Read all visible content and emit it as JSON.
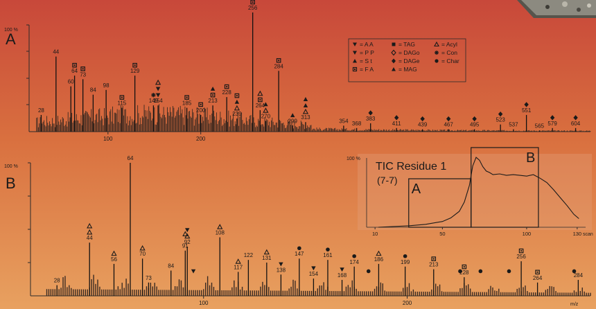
{
  "chart_data": [
    {
      "type": "bar",
      "panel_label": "A",
      "y_axis_label": "100 %",
      "x_tick_labels": [
        "100",
        "200"
      ],
      "x_ticks": [
        100,
        200
      ],
      "x_range": [
        15,
        620
      ],
      "peaks": [
        {
          "mz": 28,
          "rel": 14,
          "label": "28",
          "marker": ""
        },
        {
          "mz": 44,
          "rel": 63,
          "label": "44",
          "marker": ""
        },
        {
          "mz": 60,
          "rel": 38,
          "label": "60",
          "marker": ""
        },
        {
          "mz": 64,
          "rel": 47,
          "label": "64",
          "marker": "square"
        },
        {
          "mz": 73,
          "rel": 44,
          "label": "73",
          "marker": "square"
        },
        {
          "mz": 84,
          "rel": 31,
          "label": "84",
          "marker": ""
        },
        {
          "mz": 98,
          "rel": 35,
          "label": "98",
          "marker": ""
        },
        {
          "mz": 115,
          "rel": 20,
          "label": "115",
          "marker": "square"
        },
        {
          "mz": 129,
          "rel": 47,
          "label": "129",
          "marker": "square"
        },
        {
          "mz": 149,
          "rel": 22,
          "label": "149",
          "marker": "star"
        },
        {
          "mz": 154,
          "rel": 22,
          "label": "154",
          "marker": "tri-down"
        },
        {
          "mz": 185,
          "rel": 20,
          "label": "185",
          "marker": "square"
        },
        {
          "mz": 200,
          "rel": 14,
          "label": "200",
          "marker": "square"
        },
        {
          "mz": 213,
          "rel": 22,
          "label": "213",
          "marker": "square"
        },
        {
          "mz": 228,
          "rel": 29,
          "label": "228",
          "marker": "square"
        },
        {
          "mz": 239,
          "rel": 11,
          "label": "239",
          "marker": "tri-open"
        },
        {
          "mz": 256,
          "rel": 100,
          "label": "256",
          "marker": "square"
        },
        {
          "mz": 264,
          "rel": 18,
          "label": "264",
          "marker": "square"
        },
        {
          "mz": 270,
          "rel": 9,
          "label": "270",
          "marker": "tri-open"
        },
        {
          "mz": 284,
          "rel": 51,
          "label": "284",
          "marker": "square"
        },
        {
          "mz": 299,
          "rel": 5,
          "label": "299",
          "marker": "tri-up"
        },
        {
          "mz": 313,
          "rel": 8,
          "label": "313",
          "marker": "tri-open"
        },
        {
          "mz": 354,
          "rel": 5,
          "label": "354",
          "marker": ""
        },
        {
          "mz": 368,
          "rel": 3,
          "label": "368",
          "marker": ""
        },
        {
          "mz": 383,
          "rel": 7,
          "label": "383",
          "marker": "diamond"
        },
        {
          "mz": 411,
          "rel": 3,
          "label": "411",
          "marker": "diamond"
        },
        {
          "mz": 439,
          "rel": 2,
          "label": "439",
          "marker": "diamond"
        },
        {
          "mz": 467,
          "rel": 2,
          "label": "467",
          "marker": "diamond"
        },
        {
          "mz": 495,
          "rel": 2,
          "label": "495",
          "marker": "diamond"
        },
        {
          "mz": 523,
          "rel": 6,
          "label": "523",
          "marker": "diamond"
        },
        {
          "mz": 537,
          "rel": 2,
          "label": "537",
          "marker": ""
        },
        {
          "mz": 551,
          "rel": 14,
          "label": "551",
          "marker": "diamond"
        },
        {
          "mz": 565,
          "rel": 1,
          "label": "565",
          "marker": ""
        },
        {
          "mz": 579,
          "rel": 3,
          "label": "579",
          "marker": "diamond"
        },
        {
          "mz": 604,
          "rel": 3,
          "label": "604",
          "marker": "diamond"
        }
      ],
      "extra_markers": [
        {
          "mz": 154,
          "marker": "tri-down"
        },
        {
          "mz": 154,
          "marker": "tri-open"
        },
        {
          "mz": 213,
          "marker": "tri-up"
        },
        {
          "mz": 239,
          "marker": "tri-up"
        },
        {
          "mz": 239,
          "marker": "square"
        },
        {
          "mz": 264,
          "marker": "tri-open"
        },
        {
          "mz": 270,
          "marker": "tri-up"
        },
        {
          "mz": 313,
          "marker": "tri-up"
        },
        {
          "mz": 313,
          "marker": "tri-up"
        }
      ],
      "legend": [
        {
          "marker": "tri-down",
          "label": "= A A"
        },
        {
          "marker": "tri-down",
          "label": "= P P"
        },
        {
          "marker": "tri-up",
          "label": "= S t"
        },
        {
          "marker": "square",
          "label": "= F A"
        },
        {
          "marker": "filled-square",
          "label": "= TAG"
        },
        {
          "marker": "open-diamond",
          "label": "= DAGo"
        },
        {
          "marker": "diamond",
          "label": "= DAGe"
        },
        {
          "marker": "tri-up",
          "label": "= MAG"
        },
        {
          "marker": "tri-open",
          "label": "= Acyl"
        },
        {
          "marker": "star",
          "label": "= Con"
        },
        {
          "marker": "circle",
          "label": "= Char"
        }
      ]
    },
    {
      "type": "bar",
      "panel_label": "B",
      "y_axis_label": "100 %",
      "x_axis_label": "m/z",
      "x_tick_labels": [
        "100",
        "200"
      ],
      "x_ticks": [
        100,
        200
      ],
      "x_range": [
        15,
        290
      ],
      "peaks": [
        {
          "mz": 28,
          "rel": 8,
          "label": "28",
          "marker": ""
        },
        {
          "mz": 44,
          "rel": 40,
          "label": "44",
          "marker": "tri-open"
        },
        {
          "mz": 56,
          "rel": 24,
          "label": "56",
          "marker": "tri-open"
        },
        {
          "mz": 64,
          "rel": 100,
          "label": "64",
          "marker": ""
        },
        {
          "mz": 70,
          "rel": 28,
          "label": "70",
          "marker": "tri-open"
        },
        {
          "mz": 73,
          "rel": 10,
          "label": "73",
          "marker": ""
        },
        {
          "mz": 84,
          "rel": 19,
          "label": "84",
          "marker": ""
        },
        {
          "mz": 91,
          "rel": 34,
          "label": "91",
          "marker": ""
        },
        {
          "mz": 92,
          "rel": 37,
          "label": "92",
          "marker": "tri-open"
        },
        {
          "mz": 108,
          "rel": 44,
          "label": "108",
          "marker": "tri-open"
        },
        {
          "mz": 117,
          "rel": 18,
          "label": "117",
          "marker": "tri-open"
        },
        {
          "mz": 122,
          "rel": 27,
          "label": "122",
          "marker": ""
        },
        {
          "mz": 131,
          "rel": 25,
          "label": "131",
          "marker": "tri-open"
        },
        {
          "mz": 138,
          "rel": 16,
          "label": "138",
          "marker": "tri-down"
        },
        {
          "mz": 147,
          "rel": 28,
          "label": "147",
          "marker": "circle"
        },
        {
          "mz": 154,
          "rel": 13,
          "label": "154",
          "marker": "tri-down"
        },
        {
          "mz": 161,
          "rel": 27,
          "label": "161",
          "marker": "circle"
        },
        {
          "mz": 168,
          "rel": 12,
          "label": "168",
          "marker": "tri-down"
        },
        {
          "mz": 174,
          "rel": 22,
          "label": "174",
          "marker": "circle"
        },
        {
          "mz": 186,
          "rel": 24,
          "label": "186",
          "marker": "tri-open"
        },
        {
          "mz": 199,
          "rel": 22,
          "label": "199",
          "marker": "circle"
        },
        {
          "mz": 213,
          "rel": 20,
          "label": "213",
          "marker": "square"
        },
        {
          "mz": 228,
          "rel": 14,
          "label": "228",
          "marker": "square"
        },
        {
          "mz": 256,
          "rel": 26,
          "label": "256",
          "marker": "square"
        },
        {
          "mz": 264,
          "rel": 10,
          "label": "264",
          "marker": "square"
        },
        {
          "mz": 284,
          "rel": 12,
          "label": "284",
          "marker": ""
        }
      ],
      "extra_markers": [
        {
          "mz": 44,
          "marker": "tri-open"
        },
        {
          "mz": 91,
          "marker": "tri-open"
        },
        {
          "mz": 92,
          "marker": "tri-down"
        },
        {
          "mz": 95,
          "marker": "tri-down"
        },
        {
          "mz": 181,
          "marker": "circle"
        },
        {
          "mz": 226,
          "marker": "circle"
        },
        {
          "mz": 236,
          "marker": "circle"
        },
        {
          "mz": 250,
          "marker": "circle"
        },
        {
          "mz": 282,
          "marker": "circle"
        }
      ]
    },
    {
      "type": "line",
      "title": "TIC Residue  1",
      "subtitle": "(7-7)",
      "y_axis_label": "100 %",
      "x_axis_label": "scan",
      "x_tick_labels": [
        "10",
        "50",
        "100",
        "130"
      ],
      "x_ticks": [
        10,
        50,
        100,
        130
      ],
      "x_range": [
        5,
        135
      ],
      "x": [
        12,
        20,
        30,
        40,
        50,
        55,
        60,
        63,
        66,
        68,
        70,
        72,
        74,
        76,
        78,
        80,
        84,
        88,
        92,
        96,
        100,
        104,
        108,
        112,
        116,
        120,
        124,
        128,
        131
      ],
      "y": [
        0,
        1,
        2,
        4,
        8,
        13,
        22,
        35,
        58,
        85,
        97,
        93,
        84,
        78,
        76,
        73,
        74,
        72,
        73,
        72,
        71,
        73,
        68,
        62,
        52,
        41,
        30,
        18,
        12
      ],
      "regions": [
        {
          "label": "A",
          "x_start": 30,
          "x_end": 67
        },
        {
          "label": "B",
          "x_start": 67,
          "x_end": 107
        }
      ]
    }
  ]
}
